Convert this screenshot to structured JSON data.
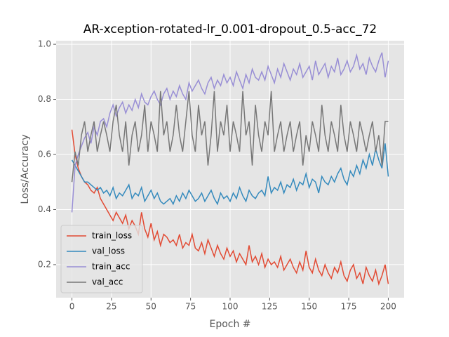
{
  "chart_data": {
    "type": "line",
    "title": "AR-xception-rotated-lr_0.001-dropout_0.5-acc_72",
    "x_label": "Epoch #",
    "y_label": "Loss/Accuracy",
    "x": [
      0,
      2,
      4,
      6,
      8,
      10,
      12,
      14,
      16,
      18,
      20,
      22,
      24,
      26,
      28,
      30,
      32,
      34,
      36,
      38,
      40,
      42,
      44,
      46,
      48,
      50,
      52,
      54,
      56,
      58,
      60,
      62,
      64,
      66,
      68,
      70,
      72,
      74,
      76,
      78,
      80,
      82,
      84,
      86,
      88,
      90,
      92,
      94,
      96,
      98,
      100,
      102,
      104,
      106,
      108,
      110,
      112,
      114,
      116,
      118,
      120,
      122,
      124,
      126,
      128,
      130,
      132,
      134,
      136,
      138,
      140,
      142,
      144,
      146,
      148,
      150,
      152,
      154,
      156,
      158,
      160,
      162,
      164,
      166,
      168,
      170,
      172,
      174,
      176,
      178,
      180,
      182,
      184,
      186,
      188,
      190,
      192,
      194,
      196,
      198,
      200
    ],
    "series": [
      {
        "name": "train_loss",
        "color": "#E24A33",
        "values": [
          0.69,
          0.6,
          0.55,
          0.52,
          0.5,
          0.49,
          0.47,
          0.46,
          0.48,
          0.44,
          0.42,
          0.4,
          0.38,
          0.36,
          0.39,
          0.37,
          0.35,
          0.38,
          0.33,
          0.36,
          0.34,
          0.31,
          0.39,
          0.33,
          0.3,
          0.35,
          0.29,
          0.32,
          0.27,
          0.31,
          0.3,
          0.28,
          0.29,
          0.27,
          0.31,
          0.26,
          0.28,
          0.27,
          0.31,
          0.26,
          0.25,
          0.28,
          0.24,
          0.29,
          0.26,
          0.23,
          0.27,
          0.24,
          0.22,
          0.26,
          0.23,
          0.25,
          0.21,
          0.24,
          0.22,
          0.2,
          0.27,
          0.21,
          0.23,
          0.2,
          0.24,
          0.19,
          0.22,
          0.2,
          0.21,
          0.19,
          0.23,
          0.18,
          0.2,
          0.22,
          0.19,
          0.17,
          0.21,
          0.18,
          0.25,
          0.19,
          0.17,
          0.22,
          0.18,
          0.16,
          0.2,
          0.17,
          0.15,
          0.19,
          0.17,
          0.21,
          0.16,
          0.14,
          0.18,
          0.2,
          0.15,
          0.17,
          0.13,
          0.19,
          0.16,
          0.14,
          0.18,
          0.13,
          0.16,
          0.2,
          0.13
        ]
      },
      {
        "name": "val_loss",
        "color": "#348ABD",
        "values": [
          0.58,
          0.56,
          0.54,
          0.52,
          0.5,
          0.5,
          0.49,
          0.48,
          0.47,
          0.48,
          0.46,
          0.47,
          0.45,
          0.48,
          0.44,
          0.46,
          0.45,
          0.47,
          0.49,
          0.44,
          0.46,
          0.45,
          0.48,
          0.43,
          0.45,
          0.47,
          0.44,
          0.46,
          0.43,
          0.42,
          0.43,
          0.44,
          0.42,
          0.45,
          0.43,
          0.46,
          0.44,
          0.47,
          0.45,
          0.43,
          0.44,
          0.46,
          0.43,
          0.45,
          0.47,
          0.44,
          0.42,
          0.46,
          0.44,
          0.45,
          0.43,
          0.46,
          0.44,
          0.48,
          0.45,
          0.43,
          0.47,
          0.45,
          0.44,
          0.46,
          0.47,
          0.45,
          0.52,
          0.46,
          0.48,
          0.47,
          0.5,
          0.46,
          0.49,
          0.48,
          0.51,
          0.47,
          0.5,
          0.49,
          0.53,
          0.48,
          0.51,
          0.5,
          0.46,
          0.52,
          0.5,
          0.49,
          0.52,
          0.5,
          0.53,
          0.55,
          0.51,
          0.49,
          0.54,
          0.52,
          0.56,
          0.53,
          0.58,
          0.55,
          0.6,
          0.56,
          0.62,
          0.58,
          0.55,
          0.64,
          0.52
        ]
      },
      {
        "name": "train_acc",
        "color": "#988ED5",
        "values": [
          0.39,
          0.56,
          0.6,
          0.63,
          0.66,
          0.68,
          0.64,
          0.7,
          0.67,
          0.72,
          0.73,
          0.7,
          0.75,
          0.78,
          0.74,
          0.77,
          0.79,
          0.75,
          0.78,
          0.76,
          0.8,
          0.77,
          0.82,
          0.79,
          0.78,
          0.81,
          0.83,
          0.8,
          0.78,
          0.82,
          0.84,
          0.8,
          0.83,
          0.81,
          0.85,
          0.82,
          0.8,
          0.86,
          0.83,
          0.85,
          0.87,
          0.84,
          0.82,
          0.86,
          0.88,
          0.84,
          0.87,
          0.85,
          0.89,
          0.86,
          0.88,
          0.85,
          0.9,
          0.87,
          0.84,
          0.89,
          0.86,
          0.91,
          0.88,
          0.87,
          0.9,
          0.87,
          0.92,
          0.89,
          0.86,
          0.91,
          0.88,
          0.93,
          0.9,
          0.87,
          0.91,
          0.89,
          0.93,
          0.88,
          0.9,
          0.92,
          0.87,
          0.94,
          0.89,
          0.91,
          0.93,
          0.88,
          0.92,
          0.9,
          0.95,
          0.89,
          0.91,
          0.94,
          0.9,
          0.92,
          0.96,
          0.91,
          0.93,
          0.89,
          0.95,
          0.92,
          0.9,
          0.94,
          0.97,
          0.88,
          0.94
        ]
      },
      {
        "name": "val_acc",
        "color": "#777777",
        "values": [
          0.5,
          0.61,
          0.56,
          0.67,
          0.72,
          0.61,
          0.67,
          0.72,
          0.61,
          0.67,
          0.72,
          0.67,
          0.61,
          0.72,
          0.78,
          0.67,
          0.61,
          0.72,
          0.56,
          0.67,
          0.72,
          0.61,
          0.67,
          0.78,
          0.61,
          0.72,
          0.67,
          0.61,
          0.83,
          0.67,
          0.72,
          0.61,
          0.67,
          0.78,
          0.67,
          0.61,
          0.72,
          0.83,
          0.67,
          0.61,
          0.78,
          0.67,
          0.72,
          0.56,
          0.67,
          0.83,
          0.61,
          0.72,
          0.67,
          0.78,
          0.61,
          0.72,
          0.67,
          0.61,
          0.83,
          0.67,
          0.72,
          0.56,
          0.78,
          0.67,
          0.61,
          0.72,
          0.67,
          0.83,
          0.61,
          0.67,
          0.72,
          0.61,
          0.67,
          0.72,
          0.61,
          0.67,
          0.72,
          0.56,
          0.67,
          0.61,
          0.72,
          0.67,
          0.61,
          0.78,
          0.67,
          0.61,
          0.72,
          0.67,
          0.61,
          0.78,
          0.67,
          0.61,
          0.72,
          0.67,
          0.61,
          0.72,
          0.67,
          0.61,
          0.67,
          0.72,
          0.61,
          0.67,
          0.56,
          0.72,
          0.72
        ]
      }
    ],
    "xlim": [
      -10,
      210
    ],
    "ylim": [
      0.08,
      1.013
    ],
    "xticks": [
      0,
      25,
      50,
      75,
      100,
      125,
      150,
      175,
      200
    ],
    "yticks": [
      0.2,
      0.4,
      0.6,
      0.8,
      {
        "value": 1,
        "label": "1.0"
      }
    ],
    "grid": true,
    "legend": "lower left"
  }
}
